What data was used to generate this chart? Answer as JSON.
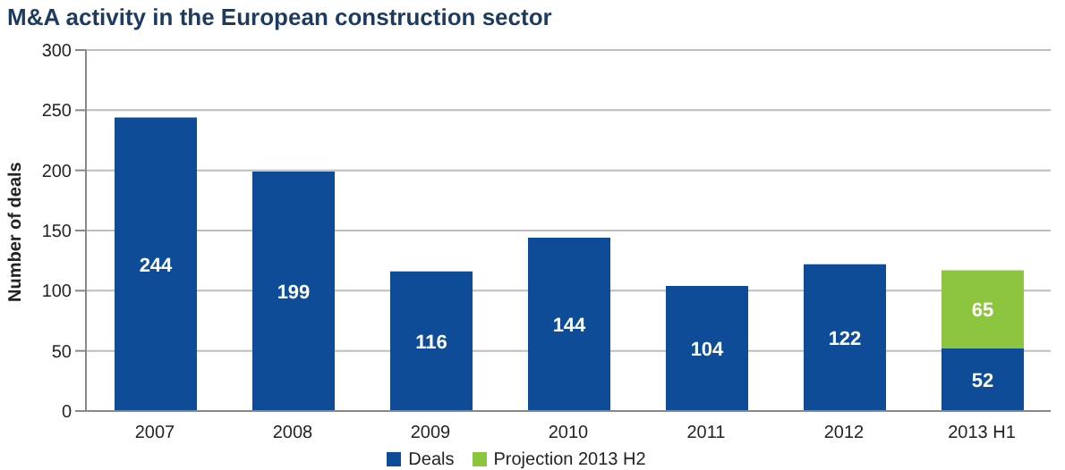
{
  "chart_data": {
    "type": "bar",
    "title": "M&A activity in the European construction sector",
    "ylabel": "Number of deals",
    "categories": [
      "2007",
      "2008",
      "2009",
      "2010",
      "2011",
      "2012",
      "2013 H1"
    ],
    "series": [
      {
        "name": "Deals",
        "color": "#0f4c97",
        "values": [
          244,
          199,
          116,
          144,
          104,
          122,
          52
        ]
      },
      {
        "name": "Projection 2013 H2",
        "color": "#8cc63f",
        "values": [
          null,
          null,
          null,
          null,
          null,
          null,
          65
        ]
      }
    ],
    "stacked": true,
    "ylim": [
      0,
      300
    ],
    "yticks": [
      0,
      50,
      100,
      150,
      200,
      250,
      300
    ],
    "grid": "y",
    "legend": "bottom",
    "data_labels": true
  }
}
